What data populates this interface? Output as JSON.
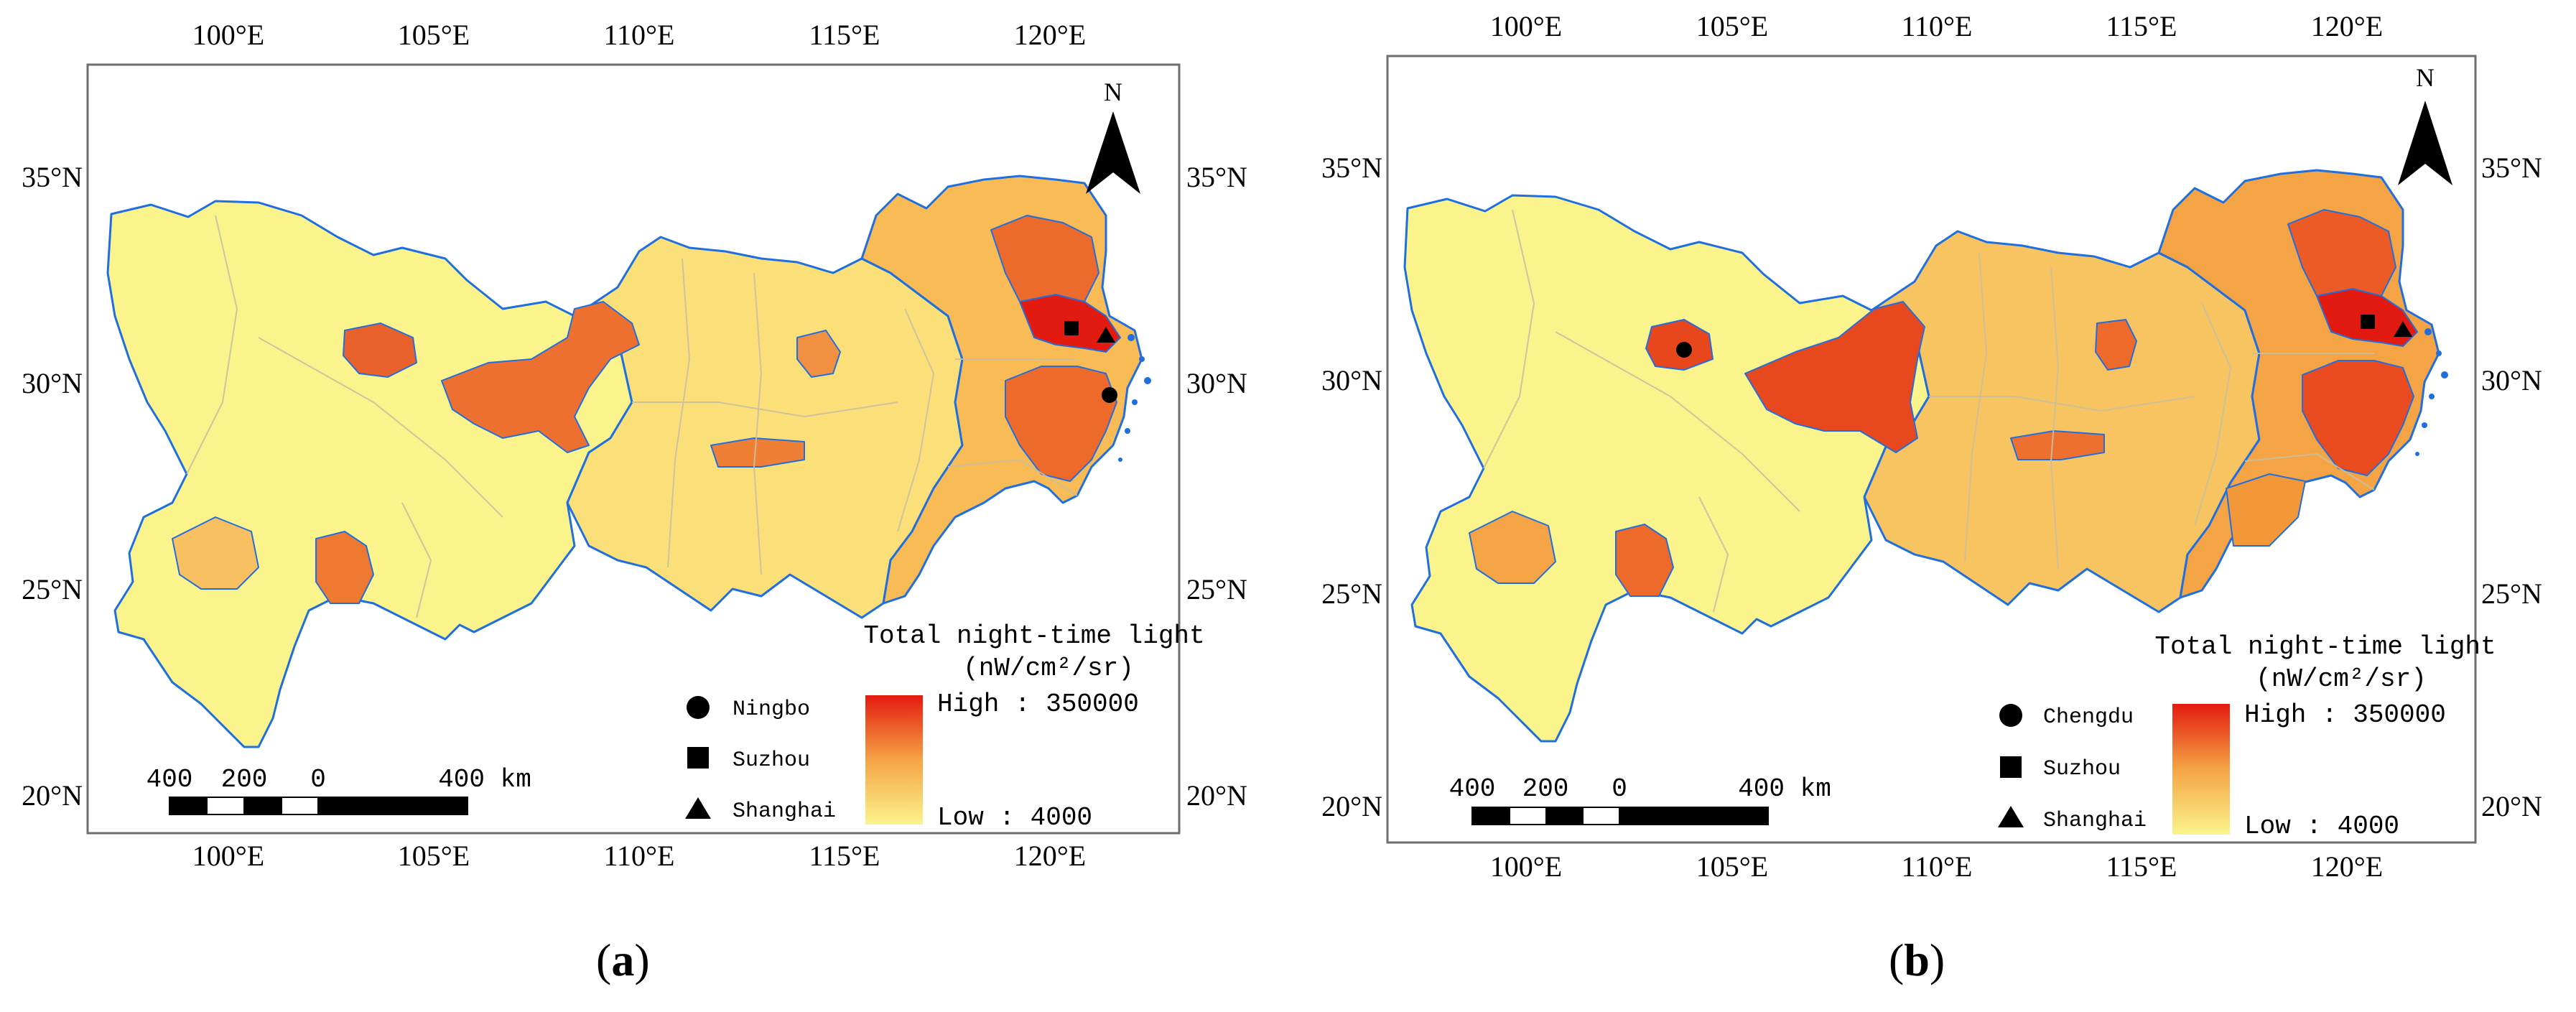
{
  "panels": [
    {
      "id": "a",
      "caption_open": "(",
      "caption_letter": "a",
      "caption_close": ")",
      "top_ticks": [
        "100°E",
        "105°E",
        "110°E",
        "115°E",
        "120°E"
      ],
      "bottom_ticks": [
        "100°E",
        "105°E",
        "110°E",
        "115°E",
        "120°E"
      ],
      "left_ticks": [
        "35°N",
        "30°N",
        "25°N",
        "20°N"
      ],
      "right_ticks": [
        "35°N",
        "30°N",
        "25°N",
        "20°N"
      ],
      "north_label": "N",
      "legend_title_1": "Total night-time light",
      "legend_title_2": "(nW/cm²/sr)",
      "legend_high": "High : 350000",
      "legend_low": "Low : 4000",
      "markers": [
        {
          "symbol": "circle",
          "label": "Ningbo"
        },
        {
          "symbol": "square",
          "label": "Suzhou"
        },
        {
          "symbol": "triangle",
          "label": "Shanghai"
        }
      ],
      "scale_labels": [
        "400",
        "200",
        "0",
        "400 km"
      ],
      "colors": {
        "low": "#fbf48c",
        "mid": "#f5a445",
        "high": "#e31a0f",
        "border": "#1f6fe0",
        "district": "#c8c0a0"
      }
    },
    {
      "id": "b",
      "caption_open": "(",
      "caption_letter": "b",
      "caption_close": ")",
      "top_ticks": [
        "100°E",
        "105°E",
        "110°E",
        "115°E",
        "120°E"
      ],
      "bottom_ticks": [
        "100°E",
        "105°E",
        "110°E",
        "115°E",
        "120°E"
      ],
      "left_ticks": [
        "35°N",
        "30°N",
        "25°N",
        "20°N"
      ],
      "right_ticks": [
        "35°N",
        "30°N",
        "25°N",
        "20°N"
      ],
      "north_label": "N",
      "legend_title_1": "Total night-time light",
      "legend_title_2": "(nW/cm²/sr)",
      "legend_high": "High : 350000",
      "legend_low": "Low : 4000",
      "markers": [
        {
          "symbol": "circle",
          "label": "Chengdu"
        },
        {
          "symbol": "square",
          "label": "Suzhou"
        },
        {
          "symbol": "triangle",
          "label": "Shanghai"
        }
      ],
      "scale_labels": [
        "400",
        "200",
        "0",
        "400 km"
      ],
      "colors": {
        "low": "#fbf48c",
        "mid": "#f5a445",
        "high": "#e31a0f",
        "border": "#1f6fe0",
        "district": "#c8c0a0"
      }
    }
  ]
}
